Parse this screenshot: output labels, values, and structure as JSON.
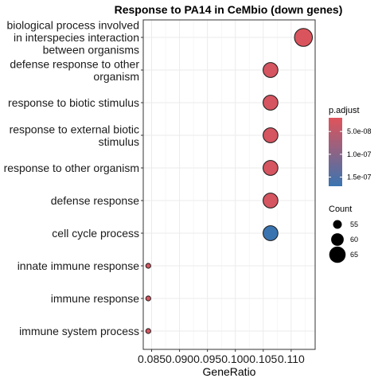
{
  "chart_data": {
    "type": "scatter",
    "title": "Response to PA14 in CeMbio (down genes)",
    "xlabel": "GeneRatio",
    "ylabel": "",
    "xlim": [
      0.0835,
      0.1143
    ],
    "xticks": [
      0.085,
      0.09,
      0.095,
      0.1,
      0.105,
      0.11
    ],
    "xtick_labels": [
      "0.085",
      "0.090",
      "0.095",
      "0.100",
      "0.105",
      "0.110"
    ],
    "grid": true,
    "categories": [
      [
        "biological process involved",
        "in interspecies interaction",
        "between organisms"
      ],
      [
        "defense response to other",
        "organism"
      ],
      [
        "response to biotic stimulus"
      ],
      [
        "response to external biotic",
        "stimulus"
      ],
      [
        "response to other organism"
      ],
      [
        "defense response"
      ],
      [
        "cell cycle process"
      ],
      [
        "innate immune response"
      ],
      [
        "immune response"
      ],
      [
        "immune system process"
      ]
    ],
    "points": [
      {
        "gene_ratio": 0.1122,
        "count": 67,
        "p_adjust": 2.5e-08
      },
      {
        "gene_ratio": 0.1063,
        "count": 63,
        "p_adjust": 3e-08
      },
      {
        "gene_ratio": 0.1063,
        "count": 63,
        "p_adjust": 3e-08
      },
      {
        "gene_ratio": 0.1063,
        "count": 63,
        "p_adjust": 3e-08
      },
      {
        "gene_ratio": 0.1063,
        "count": 63,
        "p_adjust": 3e-08
      },
      {
        "gene_ratio": 0.1063,
        "count": 63,
        "p_adjust": 3e-08
      },
      {
        "gene_ratio": 0.1063,
        "count": 63,
        "p_adjust": 1.7e-07
      },
      {
        "gene_ratio": 0.0844,
        "count": 50,
        "p_adjust": 3e-08
      },
      {
        "gene_ratio": 0.0844,
        "count": 50,
        "p_adjust": 3e-08
      },
      {
        "gene_ratio": 0.0844,
        "count": 50,
        "p_adjust": 3e-08
      }
    ],
    "color_legend": {
      "title": "p.adjust",
      "min": 2e-08,
      "max": 1.7e-07,
      "low_color": "#e0535a",
      "high_color": "#3a74b0",
      "ticks": [
        5e-08,
        1e-07,
        1.5e-07
      ],
      "tick_labels": [
        "5.0e-08",
        "1.0e-07",
        "1.5e-07"
      ],
      "position": "right"
    },
    "size_legend": {
      "title": "Count",
      "values": [
        55,
        60,
        65
      ],
      "labels": [
        "55",
        "60",
        "65"
      ],
      "position": "right"
    }
  }
}
